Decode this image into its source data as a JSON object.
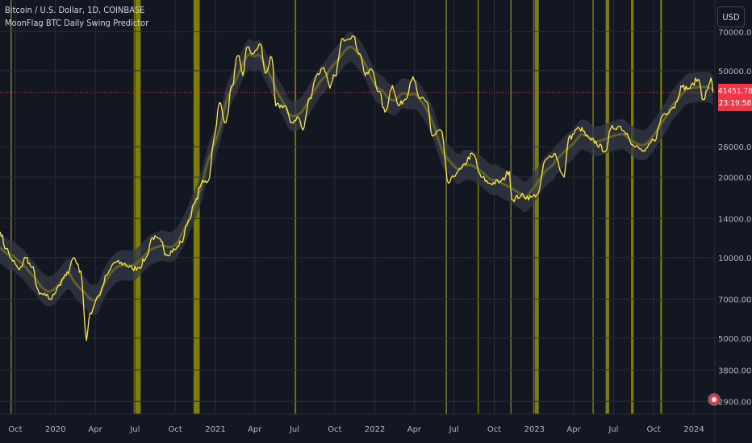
{
  "legend": {
    "symbol_line": "Bitcoin / U.S. Dollar, 1D, COINBASE",
    "indicator_line": "MoonFlag BTC Daily Swing Predictor"
  },
  "currency_button": "USD",
  "last_price_badge": {
    "price": "41451.78",
    "countdown": "23:19:58"
  },
  "colors": {
    "background": "#131722",
    "grid": "#2a2e39",
    "price_line": "#ffeb3b",
    "prediction_band": "#363a45",
    "signal_bar": "#8a8a0c",
    "last_price_line": "#f23645",
    "axis_text": "#b2b5be"
  },
  "icons": {
    "settings": "gear-icon"
  },
  "chart_data": {
    "type": "line",
    "title": "Bitcoin / U.S. Dollar, 1D, COINBASE",
    "y_scale": "log",
    "ylim": [
      2600,
      92000
    ],
    "xlim": [
      "2019-08-27",
      "2024-02-18"
    ],
    "x_ticks": [
      {
        "date": "2019-10-01",
        "label": "Oct"
      },
      {
        "date": "2020-01-01",
        "label": "2020"
      },
      {
        "date": "2020-04-01",
        "label": "Apr"
      },
      {
        "date": "2020-07-01",
        "label": "Jul"
      },
      {
        "date": "2020-10-01",
        "label": "Oct"
      },
      {
        "date": "2021-01-01",
        "label": "2021"
      },
      {
        "date": "2021-04-01",
        "label": "Apr"
      },
      {
        "date": "2021-07-01",
        "label": "Jul"
      },
      {
        "date": "2021-10-01",
        "label": "Oct"
      },
      {
        "date": "2022-01-01",
        "label": "2022"
      },
      {
        "date": "2022-04-01",
        "label": "Apr"
      },
      {
        "date": "2022-07-01",
        "label": "Jul"
      },
      {
        "date": "2022-10-01",
        "label": "Oct"
      },
      {
        "date": "2023-01-01",
        "label": "2023"
      },
      {
        "date": "2023-04-01",
        "label": "Apr"
      },
      {
        "date": "2023-07-01",
        "label": "Jul"
      },
      {
        "date": "2023-10-01",
        "label": "Oct"
      },
      {
        "date": "2024-01-01",
        "label": "2024"
      }
    ],
    "y_ticks": [
      {
        "value": 70000,
        "label": "70000.00"
      },
      {
        "value": 50000,
        "label": "50000.00"
      },
      {
        "value": 26000,
        "label": "26000.00"
      },
      {
        "value": 20000,
        "label": "20000.00"
      },
      {
        "value": 14000,
        "label": "14000.00"
      },
      {
        "value": 10000,
        "label": "10000.00"
      },
      {
        "value": 7000,
        "label": "7000.00"
      },
      {
        "value": 5000,
        "label": "5000.00"
      },
      {
        "value": 3800,
        "label": "3800.00"
      },
      {
        "value": 2900,
        "label": "2900.00"
      }
    ],
    "last_price": 41451.78,
    "series": [
      {
        "name": "BTCUSD",
        "points": [
          [
            "2019-08-27",
            12500
          ],
          [
            "2019-09-10",
            10800
          ],
          [
            "2019-09-25",
            9700
          ],
          [
            "2019-10-10",
            9000
          ],
          [
            "2019-10-25",
            10000
          ],
          [
            "2019-11-08",
            9200
          ],
          [
            "2019-11-25",
            7300
          ],
          [
            "2019-12-10",
            7200
          ],
          [
            "2019-12-20",
            7000
          ],
          [
            "2020-01-10",
            7900
          ],
          [
            "2020-01-25",
            8600
          ],
          [
            "2020-02-12",
            10000
          ],
          [
            "2020-02-28",
            8900
          ],
          [
            "2020-03-12",
            4900
          ],
          [
            "2020-03-20",
            6200
          ],
          [
            "2020-04-08",
            7200
          ],
          [
            "2020-04-30",
            8700
          ],
          [
            "2020-05-15",
            9600
          ],
          [
            "2020-06-05",
            9500
          ],
          [
            "2020-06-25",
            9100
          ],
          [
            "2020-07-10",
            9200
          ],
          [
            "2020-07-25",
            9900
          ],
          [
            "2020-08-10",
            11900
          ],
          [
            "2020-08-30",
            11500
          ],
          [
            "2020-09-10",
            10300
          ],
          [
            "2020-09-30",
            10700
          ],
          [
            "2020-10-15",
            11400
          ],
          [
            "2020-10-31",
            13700
          ],
          [
            "2020-11-15",
            16000
          ],
          [
            "2020-11-30",
            19000
          ],
          [
            "2020-12-15",
            19300
          ],
          [
            "2020-12-31",
            29000
          ],
          [
            "2021-01-10",
            38000
          ],
          [
            "2021-01-25",
            32000
          ],
          [
            "2021-02-08",
            44000
          ],
          [
            "2021-02-21",
            57000
          ],
          [
            "2021-03-05",
            48000
          ],
          [
            "2021-03-13",
            61000
          ],
          [
            "2021-03-30",
            58000
          ],
          [
            "2021-04-14",
            63000
          ],
          [
            "2021-04-25",
            49000
          ],
          [
            "2021-05-10",
            56000
          ],
          [
            "2021-05-19",
            37000
          ],
          [
            "2021-06-10",
            37000
          ],
          [
            "2021-06-22",
            32000
          ],
          [
            "2021-07-10",
            33500
          ],
          [
            "2021-07-20",
            30000
          ],
          [
            "2021-08-05",
            39500
          ],
          [
            "2021-08-20",
            48000
          ],
          [
            "2021-09-06",
            51500
          ],
          [
            "2021-09-20",
            43000
          ],
          [
            "2021-10-01",
            48000
          ],
          [
            "2021-10-20",
            66000
          ],
          [
            "2021-11-10",
            67500
          ],
          [
            "2021-11-30",
            57000
          ],
          [
            "2021-12-10",
            48000
          ],
          [
            "2021-12-25",
            50500
          ],
          [
            "2022-01-10",
            41800
          ],
          [
            "2022-01-24",
            35000
          ],
          [
            "2022-02-10",
            44000
          ],
          [
            "2022-02-24",
            37000
          ],
          [
            "2022-03-10",
            39000
          ],
          [
            "2022-03-29",
            47500
          ],
          [
            "2022-04-12",
            39500
          ],
          [
            "2022-05-01",
            38000
          ],
          [
            "2022-05-12",
            28500
          ],
          [
            "2022-06-01",
            30000
          ],
          [
            "2022-06-18",
            19000
          ],
          [
            "2022-07-10",
            21000
          ],
          [
            "2022-08-14",
            24300
          ],
          [
            "2022-09-01",
            20000
          ],
          [
            "2022-09-20",
            19000
          ],
          [
            "2022-10-15",
            19200
          ],
          [
            "2022-11-05",
            21000
          ],
          [
            "2022-11-10",
            16500
          ],
          [
            "2022-12-01",
            17000
          ],
          [
            "2022-12-25",
            16800
          ],
          [
            "2023-01-10",
            17400
          ],
          [
            "2023-01-25",
            23000
          ],
          [
            "2023-02-15",
            24500
          ],
          [
            "2023-03-10",
            20000
          ],
          [
            "2023-03-20",
            28000
          ],
          [
            "2023-04-14",
            30400
          ],
          [
            "2023-05-10",
            27500
          ],
          [
            "2023-06-15",
            25200
          ],
          [
            "2023-06-25",
            30500
          ],
          [
            "2023-07-14",
            31000
          ],
          [
            "2023-08-01",
            29200
          ],
          [
            "2023-08-17",
            26000
          ],
          [
            "2023-09-11",
            25000
          ],
          [
            "2023-10-01",
            27500
          ],
          [
            "2023-10-24",
            34500
          ],
          [
            "2023-11-15",
            36500
          ],
          [
            "2023-12-05",
            43500
          ],
          [
            "2023-12-20",
            43000
          ],
          [
            "2024-01-11",
            46500
          ],
          [
            "2024-01-23",
            39000
          ],
          [
            "2024-02-01",
            42500
          ],
          [
            "2024-02-09",
            47000
          ],
          [
            "2024-02-14",
            41451
          ]
        ]
      }
    ],
    "signal_bars": [
      {
        "start": "2019-09-20",
        "end": "2019-09-22"
      },
      {
        "start": "2020-06-28",
        "end": "2020-07-14"
      },
      {
        "start": "2020-11-12",
        "end": "2020-11-26"
      },
      {
        "start": "2021-07-02",
        "end": "2021-07-04"
      },
      {
        "start": "2022-06-12",
        "end": "2022-06-14"
      },
      {
        "start": "2022-08-24",
        "end": "2022-08-26"
      },
      {
        "start": "2022-11-07",
        "end": "2022-11-09"
      },
      {
        "start": "2022-12-29",
        "end": "2023-01-11"
      },
      {
        "start": "2023-05-14",
        "end": "2023-05-16"
      },
      {
        "start": "2023-06-13",
        "end": "2023-06-21"
      },
      {
        "start": "2023-08-10",
        "end": "2023-08-16"
      },
      {
        "start": "2023-10-16",
        "end": "2023-10-20"
      }
    ]
  }
}
